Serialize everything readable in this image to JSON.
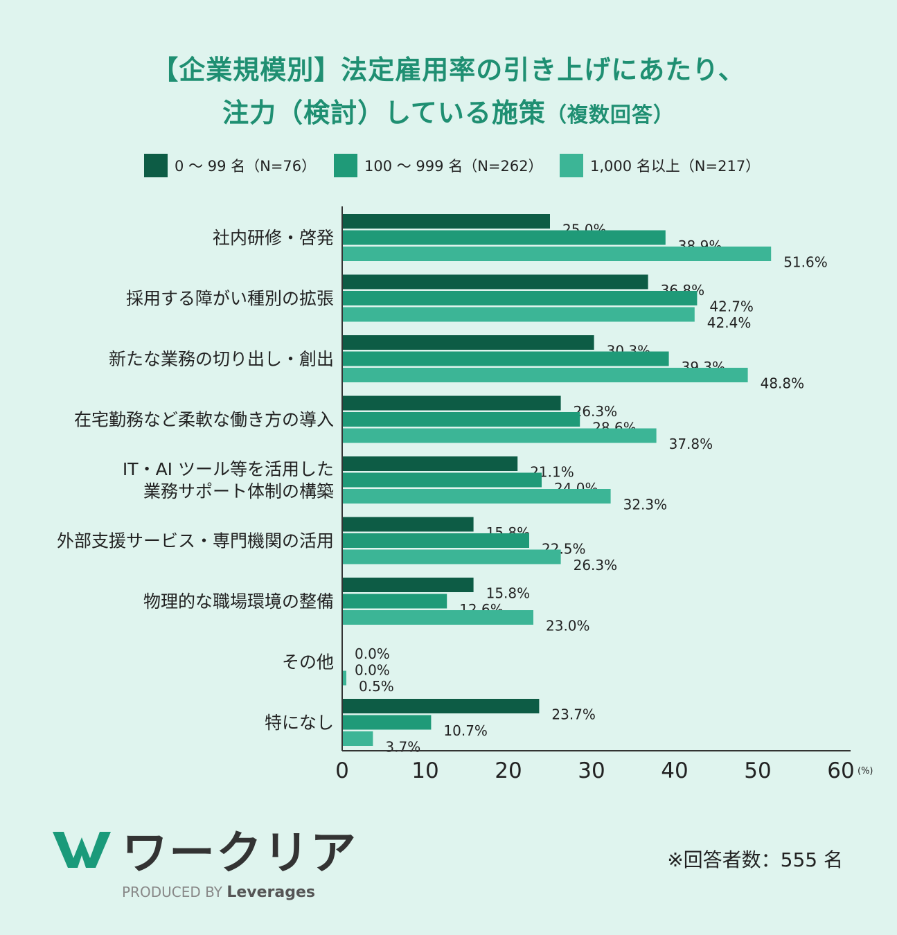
{
  "title": {
    "line1": "【企業規模別】法定雇用率の引き上げにあたり、",
    "line2_main": "注力（検討）している施策",
    "line2_sub": "（複数回答）"
  },
  "legend": [
    {
      "label": "0 〜 99 名（N=76）",
      "color": "#0d5c45"
    },
    {
      "label": "100 〜 999 名（N=262）",
      "color": "#1f9a78"
    },
    {
      "label": "1,000 名以上（N=217）",
      "color": "#3cb596"
    }
  ],
  "chart_data": {
    "type": "bar",
    "orientation": "horizontal",
    "categories": [
      [
        "社内研修・啓発"
      ],
      [
        "採用する障がい種別の拡張"
      ],
      [
        "新たな業務の切り出し・創出"
      ],
      [
        "在宅勤務など柔軟な働き方の導入"
      ],
      [
        "IT・AI ツール等を活用した",
        "業務サポート体制の構築"
      ],
      [
        "外部支援サービス・専門機関の活用"
      ],
      [
        "物理的な職場環境の整備"
      ],
      [
        "その他"
      ],
      [
        "特になし"
      ]
    ],
    "series": [
      {
        "name": "0 〜 99 名（N=76）",
        "values": [
          25.0,
          36.8,
          30.3,
          26.3,
          21.1,
          15.8,
          15.8,
          0.0,
          23.7
        ]
      },
      {
        "name": "100 〜 999 名（N=262）",
        "values": [
          38.9,
          42.7,
          39.3,
          28.6,
          24.0,
          22.5,
          12.6,
          0.0,
          10.7
        ]
      },
      {
        "name": "1,000 名以上（N=217）",
        "values": [
          51.6,
          42.4,
          48.8,
          37.8,
          32.3,
          26.3,
          23.0,
          0.5,
          3.7
        ]
      }
    ],
    "xlim": [
      0,
      60
    ],
    "xticks": [
      0,
      10,
      20,
      30,
      40,
      50,
      60
    ],
    "x_unit": "(%)",
    "value_suffix": "%"
  },
  "footer": {
    "logo_text": "ワークリア",
    "produced_by": "PRODUCED BY",
    "brand": "Leverages",
    "note": "※回答者数：555 名"
  }
}
